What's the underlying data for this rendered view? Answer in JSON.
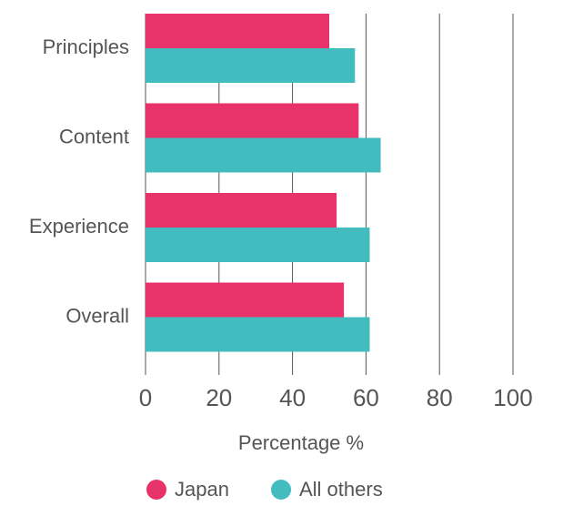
{
  "chart_data": {
    "type": "barh",
    "categories": [
      "Principles",
      "Content",
      "Experience",
      "Overall"
    ],
    "series": [
      {
        "name": "Japan",
        "color": "#e8336a",
        "values": [
          50,
          58,
          52,
          54
        ]
      },
      {
        "name": "All others",
        "color": "#43bcc0",
        "values": [
          57,
          64,
          61,
          61
        ]
      }
    ],
    "xlabel": "Percentage %",
    "xlim": [
      0,
      100
    ],
    "xticks": [
      0,
      20,
      40,
      60,
      80,
      100
    ],
    "grid": true
  }
}
